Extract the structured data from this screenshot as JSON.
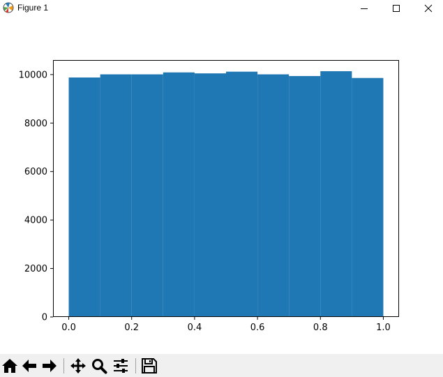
{
  "window": {
    "title": "Figure 1",
    "app_icon": "matplotlib-icon",
    "controls": [
      "minimize-icon",
      "maximize-icon",
      "close-icon"
    ]
  },
  "toolbar": {
    "buttons": [
      {
        "name": "home-button",
        "icon": "home-icon"
      },
      {
        "name": "back-button",
        "icon": "arrow-left-icon"
      },
      {
        "name": "forward-button",
        "icon": "arrow-right-icon"
      },
      {
        "name": "pan-button",
        "icon": "move-icon"
      },
      {
        "name": "zoom-button",
        "icon": "magnifier-icon"
      },
      {
        "name": "subplots-button",
        "icon": "sliders-icon"
      },
      {
        "name": "save-button",
        "icon": "floppy-disk-icon"
      }
    ]
  },
  "chart_data": {
    "type": "bar",
    "title": "",
    "xlabel": "",
    "ylabel": "",
    "bin_edges": [
      0.0,
      0.1,
      0.2,
      0.3,
      0.4,
      0.5,
      0.6,
      0.7,
      0.8,
      0.9,
      1.0
    ],
    "values": [
      9880,
      10010,
      10010,
      10090,
      10050,
      10120,
      10010,
      9940,
      10140,
      9860
    ],
    "xlim": [
      -0.05,
      1.05
    ],
    "ylim": [
      0,
      10600
    ],
    "xticks": [
      "0.0",
      "0.2",
      "0.4",
      "0.6",
      "0.8",
      "1.0"
    ],
    "yticks": [
      "0",
      "2000",
      "4000",
      "6000",
      "8000",
      "10000"
    ],
    "bar_color": "#1f77b4",
    "grid": false
  }
}
